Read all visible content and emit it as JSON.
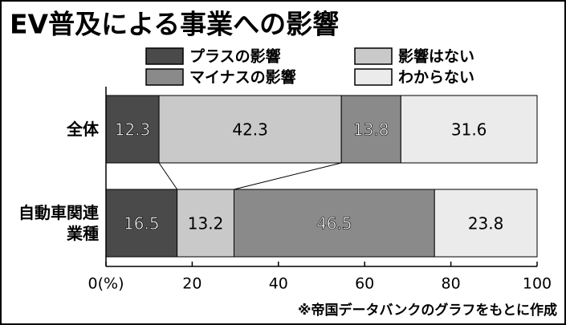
{
  "chart_data": {
    "type": "stacked-bar-horizontal",
    "title": "EV普及による事業への影響",
    "categories": [
      "全体",
      "自動車関連\n業種"
    ],
    "series": [
      {
        "name": "プラスの影響",
        "color": "#4a4a4a",
        "values": [
          12.3,
          16.5
        ]
      },
      {
        "name": "影響はない",
        "color": "#c9c9c9",
        "values": [
          42.3,
          13.2
        ]
      },
      {
        "name": "マイナスの影響",
        "color": "#8a8a8a",
        "values": [
          13.8,
          46.5
        ]
      },
      {
        "name": "わからない",
        "color": "#ebebeb",
        "values": [
          31.6,
          23.8
        ]
      }
    ],
    "xlim": [
      0,
      100
    ],
    "xticks": [
      {
        "value": 0,
        "label": "0(%)"
      },
      20,
      40,
      60,
      80,
      100
    ],
    "note": "※帝国データバンクのグラフをもとに作成"
  }
}
